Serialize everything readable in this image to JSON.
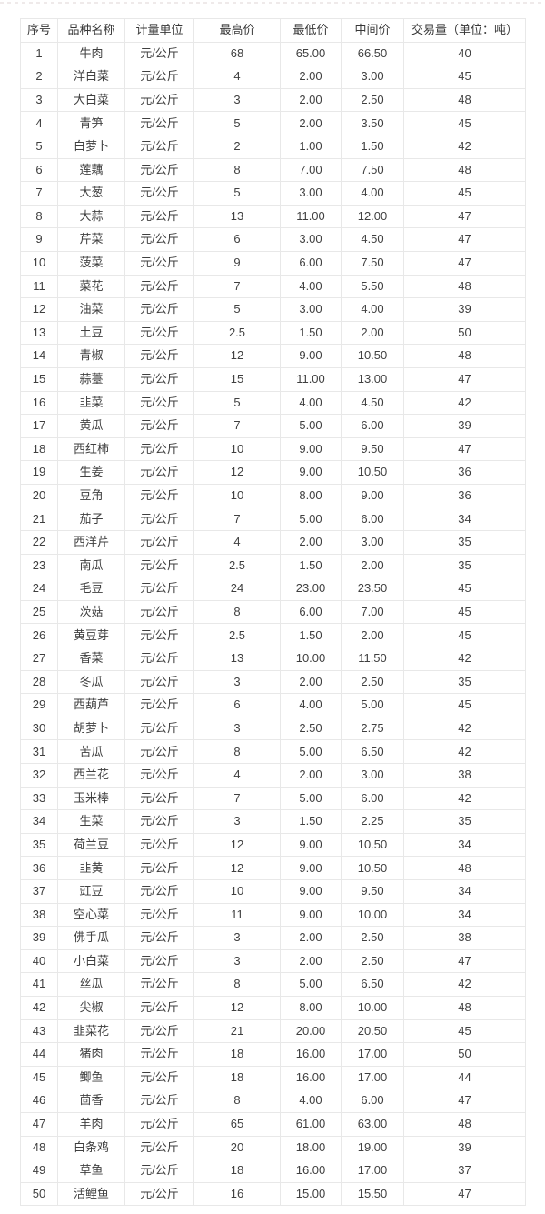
{
  "table": {
    "columns": [
      "序号",
      "品种名称",
      "计量单位",
      "最高价",
      "最低价",
      "中间价",
      "交易量（单位：吨）"
    ],
    "unit_value": "元/公斤",
    "rows": [
      [
        "1",
        "牛肉",
        "元/公斤",
        "68",
        "65.00",
        "66.50",
        "40"
      ],
      [
        "2",
        "洋白菜",
        "元/公斤",
        "4",
        "2.00",
        "3.00",
        "45"
      ],
      [
        "3",
        "大白菜",
        "元/公斤",
        "3",
        "2.00",
        "2.50",
        "48"
      ],
      [
        "4",
        "青笋",
        "元/公斤",
        "5",
        "2.00",
        "3.50",
        "45"
      ],
      [
        "5",
        "白萝卜",
        "元/公斤",
        "2",
        "1.00",
        "1.50",
        "42"
      ],
      [
        "6",
        "莲藕",
        "元/公斤",
        "8",
        "7.00",
        "7.50",
        "48"
      ],
      [
        "7",
        "大葱",
        "元/公斤",
        "5",
        "3.00",
        "4.00",
        "45"
      ],
      [
        "8",
        "大蒜",
        "元/公斤",
        "13",
        "11.00",
        "12.00",
        "47"
      ],
      [
        "9",
        "芹菜",
        "元/公斤",
        "6",
        "3.00",
        "4.50",
        "47"
      ],
      [
        "10",
        "菠菜",
        "元/公斤",
        "9",
        "6.00",
        "7.50",
        "47"
      ],
      [
        "11",
        "菜花",
        "元/公斤",
        "7",
        "4.00",
        "5.50",
        "48"
      ],
      [
        "12",
        "油菜",
        "元/公斤",
        "5",
        "3.00",
        "4.00",
        "39"
      ],
      [
        "13",
        "土豆",
        "元/公斤",
        "2.5",
        "1.50",
        "2.00",
        "50"
      ],
      [
        "14",
        "青椒",
        "元/公斤",
        "12",
        "9.00",
        "10.50",
        "48"
      ],
      [
        "15",
        "蒜薹",
        "元/公斤",
        "15",
        "11.00",
        "13.00",
        "47"
      ],
      [
        "16",
        "韭菜",
        "元/公斤",
        "5",
        "4.00",
        "4.50",
        "42"
      ],
      [
        "17",
        "黄瓜",
        "元/公斤",
        "7",
        "5.00",
        "6.00",
        "39"
      ],
      [
        "18",
        "西红柿",
        "元/公斤",
        "10",
        "9.00",
        "9.50",
        "47"
      ],
      [
        "19",
        "生姜",
        "元/公斤",
        "12",
        "9.00",
        "10.50",
        "36"
      ],
      [
        "20",
        "豆角",
        "元/公斤",
        "10",
        "8.00",
        "9.00",
        "36"
      ],
      [
        "21",
        "茄子",
        "元/公斤",
        "7",
        "5.00",
        "6.00",
        "34"
      ],
      [
        "22",
        "西洋芹",
        "元/公斤",
        "4",
        "2.00",
        "3.00",
        "35"
      ],
      [
        "23",
        "南瓜",
        "元/公斤",
        "2.5",
        "1.50",
        "2.00",
        "35"
      ],
      [
        "24",
        "毛豆",
        "元/公斤",
        "24",
        "23.00",
        "23.50",
        "45"
      ],
      [
        "25",
        "茨菇",
        "元/公斤",
        "8",
        "6.00",
        "7.00",
        "45"
      ],
      [
        "26",
        "黄豆芽",
        "元/公斤",
        "2.5",
        "1.50",
        "2.00",
        "45"
      ],
      [
        "27",
        "香菜",
        "元/公斤",
        "13",
        "10.00",
        "11.50",
        "42"
      ],
      [
        "28",
        "冬瓜",
        "元/公斤",
        "3",
        "2.00",
        "2.50",
        "35"
      ],
      [
        "29",
        "西葫芦",
        "元/公斤",
        "6",
        "4.00",
        "5.00",
        "45"
      ],
      [
        "30",
        "胡萝卜",
        "元/公斤",
        "3",
        "2.50",
        "2.75",
        "42"
      ],
      [
        "31",
        "苦瓜",
        "元/公斤",
        "8",
        "5.00",
        "6.50",
        "42"
      ],
      [
        "32",
        "西兰花",
        "元/公斤",
        "4",
        "2.00",
        "3.00",
        "38"
      ],
      [
        "33",
        "玉米棒",
        "元/公斤",
        "7",
        "5.00",
        "6.00",
        "42"
      ],
      [
        "34",
        "生菜",
        "元/公斤",
        "3",
        "1.50",
        "2.25",
        "35"
      ],
      [
        "35",
        "荷兰豆",
        "元/公斤",
        "12",
        "9.00",
        "10.50",
        "34"
      ],
      [
        "36",
        "韭黄",
        "元/公斤",
        "12",
        "9.00",
        "10.50",
        "48"
      ],
      [
        "37",
        "豇豆",
        "元/公斤",
        "10",
        "9.00",
        "9.50",
        "34"
      ],
      [
        "38",
        "空心菜",
        "元/公斤",
        "11",
        "9.00",
        "10.00",
        "34"
      ],
      [
        "39",
        "佛手瓜",
        "元/公斤",
        "3",
        "2.00",
        "2.50",
        "38"
      ],
      [
        "40",
        "小白菜",
        "元/公斤",
        "3",
        "2.00",
        "2.50",
        "47"
      ],
      [
        "41",
        "丝瓜",
        "元/公斤",
        "8",
        "5.00",
        "6.50",
        "42"
      ],
      [
        "42",
        "尖椒",
        "元/公斤",
        "12",
        "8.00",
        "10.00",
        "48"
      ],
      [
        "43",
        "韭菜花",
        "元/公斤",
        "21",
        "20.00",
        "20.50",
        "45"
      ],
      [
        "44",
        "猪肉",
        "元/公斤",
        "18",
        "16.00",
        "17.00",
        "50"
      ],
      [
        "45",
        "鲫鱼",
        "元/公斤",
        "18",
        "16.00",
        "17.00",
        "44"
      ],
      [
        "46",
        "茴香",
        "元/公斤",
        "8",
        "4.00",
        "6.00",
        "47"
      ],
      [
        "47",
        "羊肉",
        "元/公斤",
        "65",
        "61.00",
        "63.00",
        "48"
      ],
      [
        "48",
        "白条鸡",
        "元/公斤",
        "20",
        "18.00",
        "19.00",
        "39"
      ],
      [
        "49",
        "草鱼",
        "元/公斤",
        "18",
        "16.00",
        "17.00",
        "37"
      ],
      [
        "50",
        "活鲤鱼",
        "元/公斤",
        "16",
        "15.00",
        "15.50",
        "47"
      ]
    ]
  }
}
